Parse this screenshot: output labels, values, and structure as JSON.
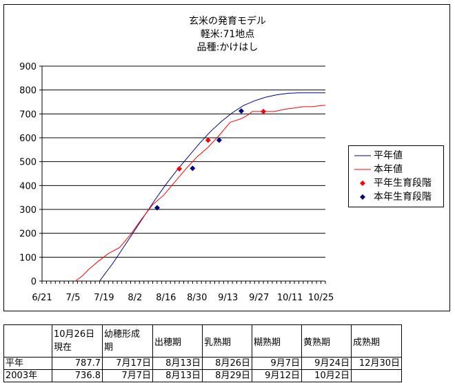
{
  "chart_data": {
    "type": "line",
    "title_lines": [
      "玄米の発育モデル",
      "軽米:71地点",
      "品種:かけはし"
    ],
    "ylim": [
      0,
      900
    ],
    "yticks": [
      0,
      100,
      200,
      300,
      400,
      500,
      600,
      700,
      800,
      900
    ],
    "xlim": [
      0,
      128
    ],
    "xtick_labels": [
      "6/21",
      "7/5",
      "7/19",
      "8/2",
      "8/16",
      "8/30",
      "9/13",
      "9/27",
      "10/11",
      "10/25"
    ],
    "grid": "horizontal",
    "legend_position": "right",
    "series": [
      {
        "name": "平年値",
        "color": "#000080",
        "x": [
          26,
          28,
          32,
          36,
          41,
          46,
          51,
          56,
          61,
          66,
          71,
          76,
          81,
          86,
          91,
          96,
          101,
          106,
          111,
          116,
          121,
          126,
          128
        ],
        "y": [
          0,
          25,
          75,
          130,
          200,
          270,
          340,
          405,
          465,
          520,
          575,
          625,
          668,
          705,
          735,
          755,
          770,
          780,
          786,
          788,
          788,
          788,
          788
        ]
      },
      {
        "name": "本年値",
        "color": "#ff0000",
        "x": [
          15,
          18,
          21,
          25,
          30,
          35,
          40,
          45,
          50,
          55,
          60,
          65,
          70,
          75,
          80,
          85,
          90,
          93,
          95,
          100,
          105,
          110,
          114,
          118,
          122,
          126,
          128
        ],
        "y": [
          0,
          20,
          48,
          80,
          115,
          140,
          195,
          260,
          320,
          360,
          415,
          470,
          520,
          560,
          610,
          665,
          680,
          695,
          710,
          710,
          710,
          720,
          725,
          730,
          730,
          735,
          736
        ]
      }
    ],
    "stage_points": [
      {
        "name": "平年生育段階",
        "color": "#ff0000",
        "x": [
          62,
          75,
          100
        ],
        "y": [
          470,
          590,
          710
        ]
      },
      {
        "name": "本年生育段階",
        "color": "#000080",
        "x": [
          52,
          68,
          80,
          90
        ],
        "y": [
          307,
          472,
          590,
          712
        ]
      }
    ]
  },
  "legend": {
    "items": [
      {
        "label": "平年値",
        "kind": "line",
        "color": "#000080"
      },
      {
        "label": "本年値",
        "kind": "line",
        "color": "#ff0000"
      },
      {
        "label": "平年生育段階",
        "kind": "marker",
        "color": "#ff0000"
      },
      {
        "label": "本年生育段階",
        "kind": "marker",
        "color": "#000080"
      }
    ]
  },
  "table": {
    "headers": [
      "",
      "10月26日\n現在",
      "幼穂形成\n期",
      "出穂期",
      "乳熟期",
      "糊熟期",
      "黄熟期",
      "成熟期"
    ],
    "rows": [
      [
        "平年",
        "787.7",
        "7月17日",
        "8月13日",
        "8月26日",
        "9月7日",
        "9月24日",
        "12月30日"
      ],
      [
        "2003年",
        "736.8",
        "7月7日",
        "8月13日",
        "8月29日",
        "9月12日",
        "10月2日",
        ""
      ]
    ]
  }
}
